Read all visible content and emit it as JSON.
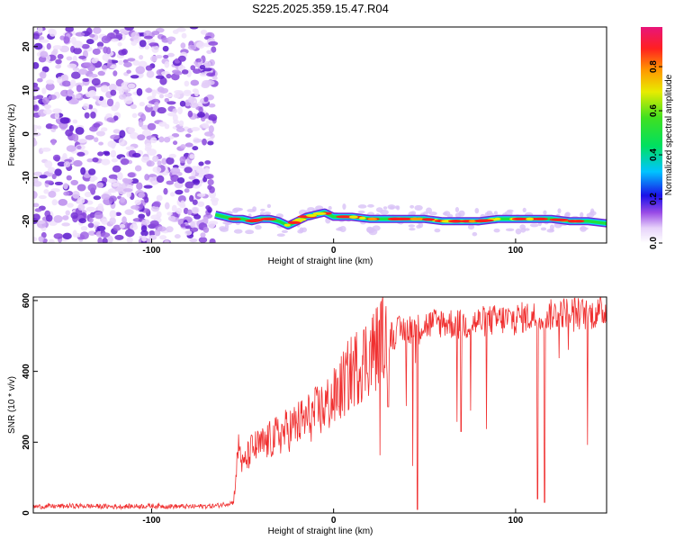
{
  "title": "S225.2025.359.15.47.R04",
  "chart_data": [
    {
      "type": "heatmap",
      "name": "spectrogram",
      "xlabel": "Height of straight line (km)",
      "ylabel": "Frequency (Hz)",
      "xlim": [
        -165,
        150
      ],
      "ylim": [
        -25,
        24.5
      ],
      "xticks": [
        -100,
        0,
        100
      ],
      "xtick_labels": [
        "-100",
        "0",
        "100"
      ],
      "yticks": [
        -20,
        -10,
        0,
        10,
        20
      ],
      "ytick_labels": [
        "-20",
        "-10",
        "0",
        "10",
        "20"
      ],
      "noise_region_x": [
        -165,
        -65
      ],
      "noise_region_y": [
        -25,
        24.5
      ],
      "signal_track": {
        "x": [
          -65,
          -60,
          -55,
          -50,
          -45,
          -40,
          -35,
          -30,
          -25,
          -20,
          -15,
          -10,
          -5,
          0,
          10,
          20,
          30,
          40,
          50,
          60,
          70,
          80,
          90,
          100,
          110,
          120,
          130,
          140,
          150
        ],
        "y": [
          -18.5,
          -19,
          -19.5,
          -19.5,
          -20,
          -19.5,
          -19.5,
          -20,
          -21,
          -20,
          -19,
          -18.5,
          -18,
          -19,
          -19,
          -19.5,
          -19.5,
          -19.5,
          -19.5,
          -20,
          -20,
          -20,
          -19.5,
          -19.5,
          -19.5,
          -19.5,
          -20,
          -20,
          -20.5
        ]
      }
    },
    {
      "type": "line",
      "name": "snr",
      "xlabel": "Height of straight line (km)",
      "ylabel": "SNR (10 * v/v)",
      "xlim": [
        -165,
        150
      ],
      "ylim": [
        0,
        610
      ],
      "xticks": [
        -100,
        0,
        100
      ],
      "xtick_labels": [
        "-100",
        "0",
        "100"
      ],
      "yticks": [
        0,
        200,
        400,
        600
      ],
      "ytick_labels": [
        "0",
        "200",
        "400",
        "600"
      ],
      "series": [
        {
          "name": "SNR",
          "color": "#f03030",
          "x": [
            -165,
            -140,
            -120,
            -100,
            -80,
            -65,
            -55,
            -52,
            -50,
            -45,
            -40,
            -30,
            -20,
            -10,
            0,
            10,
            20,
            30,
            40,
            50,
            60,
            70,
            80,
            90,
            100,
            110,
            120,
            130,
            140,
            150
          ],
          "y": [
            18,
            20,
            18,
            20,
            18,
            20,
            30,
            200,
            130,
            180,
            190,
            220,
            250,
            280,
            320,
            400,
            450,
            500,
            520,
            530,
            540,
            530,
            540,
            545,
            550,
            555,
            560,
            570,
            560,
            570
          ],
          "dips": [
            {
              "x": 46,
              "y": 10
            },
            {
              "x": 112,
              "y": 40
            },
            {
              "x": 116,
              "y": 30
            },
            {
              "x": 70,
              "y": 230
            },
            {
              "x": 30,
              "y": 300
            }
          ]
        }
      ]
    },
    {
      "type": "colorbar",
      "name": "colorbar",
      "label": "Normalized spectral amplitude",
      "range": [
        0,
        0.98
      ],
      "ticks": [
        0,
        0.2,
        0.4,
        0.6,
        0.8
      ],
      "tick_labels": [
        "0.0",
        "0.2",
        "0.4",
        "0.6",
        "0.8"
      ]
    }
  ]
}
